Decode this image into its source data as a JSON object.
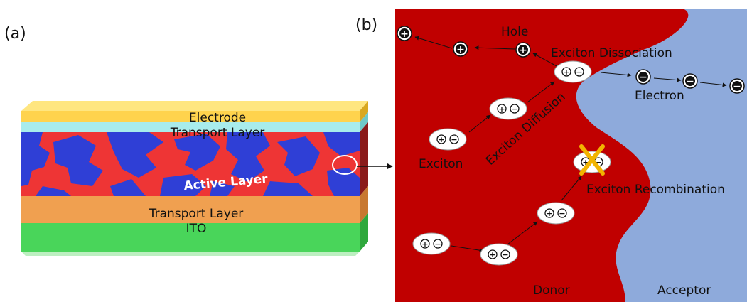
{
  "panel_a": {
    "label": "(a)",
    "layers": {
      "electrode": "Electrode",
      "transport_top": "Transport Layer",
      "active": "Active Layer",
      "transport_bottom": "Transport Layer",
      "ito": "ITO"
    }
  },
  "panel_b": {
    "label": "(b)",
    "labels": {
      "hole": "Hole",
      "exciton_dissociation": "Exciton Dissociation",
      "electron": "Electron",
      "exciton": "Exciton",
      "exciton_diffusion": "Exciton Diffusion",
      "exciton_recombination": "Exciton Recombination",
      "donor": "Donor",
      "acceptor": "Acceptor"
    },
    "symbols": {
      "plus": "+",
      "minus": "−"
    }
  },
  "colors": {
    "donor": "#c00000",
    "acceptor": "#8eaadb",
    "electrode": "#ffd34d",
    "transport_top": "#a8ecec",
    "active_blue": "#2f3fd6",
    "active_red": "#ee3535",
    "transport_bottom": "#f0a050",
    "ito": "#49d55a",
    "recombination_cross": "#f2b400"
  }
}
